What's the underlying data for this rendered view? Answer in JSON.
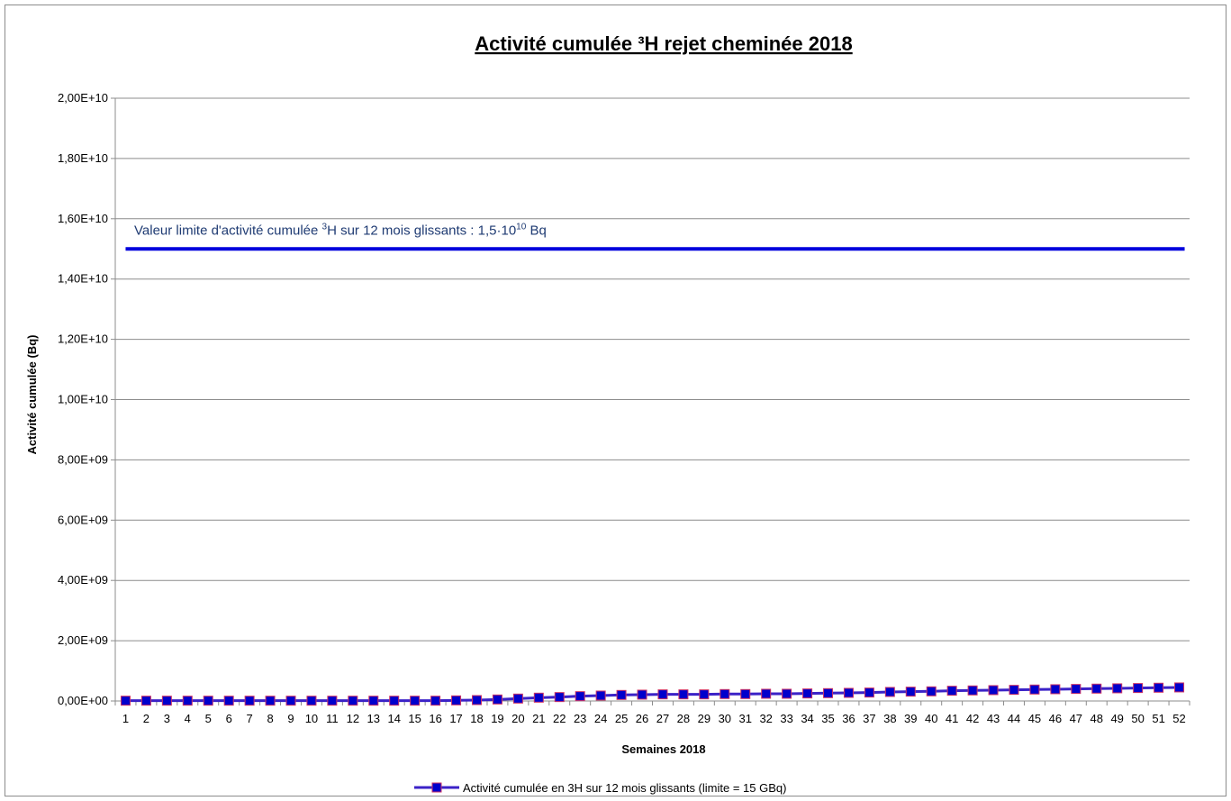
{
  "chart_data": {
    "type": "line",
    "title": "Activité cumulée ³H rejet cheminée 2018",
    "xlabel": "Semaines 2018",
    "ylabel": "Activité cumulée (Bq)",
    "ylim": [
      0,
      20000000000
    ],
    "yticks": [
      0,
      2000000000,
      4000000000,
      6000000000,
      8000000000,
      10000000000,
      12000000000,
      14000000000,
      16000000000,
      18000000000,
      20000000000
    ],
    "ytick_labels": [
      "0,00E+00",
      "2,00E+09",
      "4,00E+09",
      "6,00E+09",
      "8,00E+09",
      "1,00E+10",
      "1,20E+10",
      "1,40E+10",
      "1,60E+10",
      "1,80E+10",
      "2,00E+10"
    ],
    "categories": [
      "1",
      "2",
      "3",
      "4",
      "5",
      "6",
      "7",
      "8",
      "9",
      "10",
      "11",
      "12",
      "13",
      "14",
      "15",
      "16",
      "17",
      "18",
      "19",
      "20",
      "21",
      "22",
      "23",
      "24",
      "25",
      "26",
      "27",
      "28",
      "29",
      "30",
      "31",
      "32",
      "33",
      "34",
      "35",
      "36",
      "37",
      "38",
      "39",
      "40",
      "41",
      "42",
      "43",
      "44",
      "45",
      "46",
      "47",
      "48",
      "49",
      "50",
      "51",
      "52"
    ],
    "grid": true,
    "legend_position": "bottom",
    "series": [
      {
        "name": "Activité cumulée en 3H sur 12 mois glissants (limite = 15 GBq)",
        "color": "#0000cc",
        "line_color": "#3b22c7",
        "marker": "square",
        "marker_edge_color": "#cc3366",
        "values": [
          10000000,
          10000000,
          10000000,
          10000000,
          10000000,
          10000000,
          10000000,
          10000000,
          10000000,
          10000000,
          10000000,
          10000000,
          10000000,
          10000000,
          10000000,
          10000000,
          20000000,
          30000000,
          50000000,
          80000000,
          110000000,
          130000000,
          160000000,
          180000000,
          200000000,
          210000000,
          220000000,
          220000000,
          220000000,
          230000000,
          230000000,
          240000000,
          240000000,
          250000000,
          260000000,
          270000000,
          280000000,
          300000000,
          310000000,
          320000000,
          340000000,
          350000000,
          360000000,
          370000000,
          380000000,
          390000000,
          400000000,
          410000000,
          420000000,
          430000000,
          440000000,
          450000000
        ]
      }
    ],
    "limit_line": {
      "value": 15000000000,
      "color": "#0000dd",
      "label_prefix": "Valeur limite d'activité cumulée ",
      "label_sup": "3",
      "label_mid": "H sur 12 mois  glissants : 1,5·10",
      "label_exp": "10",
      "label_suffix": " Bq"
    }
  }
}
